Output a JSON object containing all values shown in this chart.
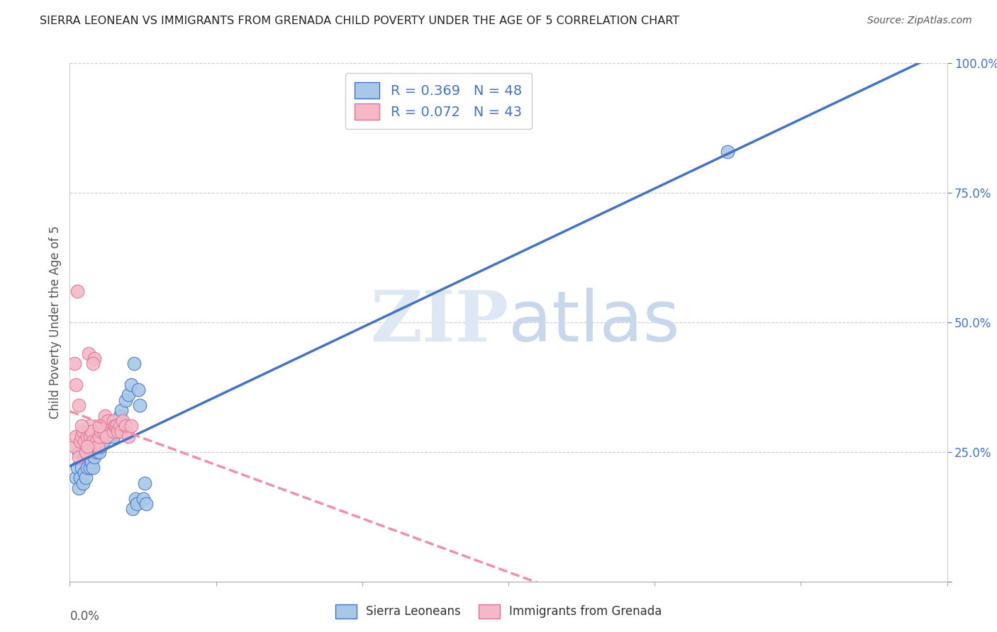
{
  "title": "SIERRA LEONEAN VS IMMIGRANTS FROM GRENADA CHILD POVERTY UNDER THE AGE OF 5 CORRELATION CHART",
  "source": "Source: ZipAtlas.com",
  "ylabel": "Child Poverty Under the Age of 5",
  "watermark_zip": "ZIP",
  "watermark_atlas": "atlas",
  "color_blue_fill": "#a8c8e8",
  "color_blue_edge": "#4472c4",
  "color_pink_fill": "#f4b8c8",
  "color_pink_edge": "#e07090",
  "color_blue_line": "#4472c4",
  "color_pink_line": "#f090a8",
  "color_grid": "#cccccc",
  "color_right_tick": "#4472c4",
  "legend_label1": "R = 0.369   N = 48",
  "legend_label2": "R = 0.072   N = 43",
  "bottom_label1": "Sierra Leoneans",
  "bottom_label2": "Immigrants from Grenada",
  "sierra_x": [
    0.0004,
    0.0005,
    0.0006,
    0.0006,
    0.0007,
    0.0008,
    0.0009,
    0.001,
    0.001,
    0.0011,
    0.0012,
    0.0013,
    0.0013,
    0.0014,
    0.0015,
    0.0015,
    0.0016,
    0.0016,
    0.0017,
    0.0018,
    0.002,
    0.002,
    0.0021,
    0.0022,
    0.0023,
    0.0024,
    0.0025,
    0.0026,
    0.0027,
    0.0028,
    0.003,
    0.0032,
    0.0033,
    0.0034,
    0.0035,
    0.0038,
    0.004,
    0.0042,
    0.0043,
    0.0044,
    0.0045,
    0.0046,
    0.0047,
    0.0048,
    0.005,
    0.0051,
    0.0052,
    0.045
  ],
  "sierra_y": [
    0.2,
    0.22,
    0.18,
    0.25,
    0.2,
    0.22,
    0.19,
    0.21,
    0.24,
    0.2,
    0.22,
    0.24,
    0.26,
    0.22,
    0.23,
    0.25,
    0.22,
    0.26,
    0.24,
    0.25,
    0.25,
    0.27,
    0.26,
    0.28,
    0.27,
    0.3,
    0.29,
    0.31,
    0.28,
    0.3,
    0.28,
    0.31,
    0.3,
    0.32,
    0.33,
    0.35,
    0.36,
    0.38,
    0.14,
    0.42,
    0.16,
    0.15,
    0.37,
    0.34,
    0.16,
    0.19,
    0.15,
    0.83
  ],
  "grenada_x": [
    0.0003,
    0.0004,
    0.0005,
    0.0006,
    0.0007,
    0.0008,
    0.0009,
    0.001,
    0.0011,
    0.0012,
    0.0013,
    0.0014,
    0.0014,
    0.0015,
    0.0016,
    0.0017,
    0.0018,
    0.0019,
    0.002,
    0.0021,
    0.0022,
    0.0023,
    0.0024,
    0.0025,
    0.0026,
    0.003,
    0.003,
    0.0031,
    0.0032,
    0.0033,
    0.0034,
    0.0035,
    0.0036,
    0.0038,
    0.004,
    0.0042,
    0.0003,
    0.0004,
    0.0006,
    0.0008,
    0.0012,
    0.0016,
    0.002
  ],
  "grenada_y": [
    0.26,
    0.28,
    0.56,
    0.24,
    0.27,
    0.28,
    0.29,
    0.27,
    0.25,
    0.28,
    0.44,
    0.28,
    0.3,
    0.29,
    0.27,
    0.43,
    0.27,
    0.26,
    0.28,
    0.29,
    0.3,
    0.29,
    0.32,
    0.28,
    0.31,
    0.29,
    0.31,
    0.3,
    0.3,
    0.29,
    0.3,
    0.29,
    0.31,
    0.3,
    0.28,
    0.3,
    0.42,
    0.38,
    0.34,
    0.3,
    0.26,
    0.42,
    0.3
  ],
  "xmin": 0.0,
  "xmax": 0.06,
  "ymin": 0.0,
  "ymax": 1.0,
  "yticks": [
    0.0,
    0.25,
    0.5,
    0.75,
    1.0
  ],
  "ytick_labels": [
    "",
    "25.0%",
    "50.0%",
    "75.0%",
    "100.0%"
  ],
  "xtick_positions": [
    0.0,
    0.01,
    0.02,
    0.03,
    0.04,
    0.05,
    0.06
  ]
}
